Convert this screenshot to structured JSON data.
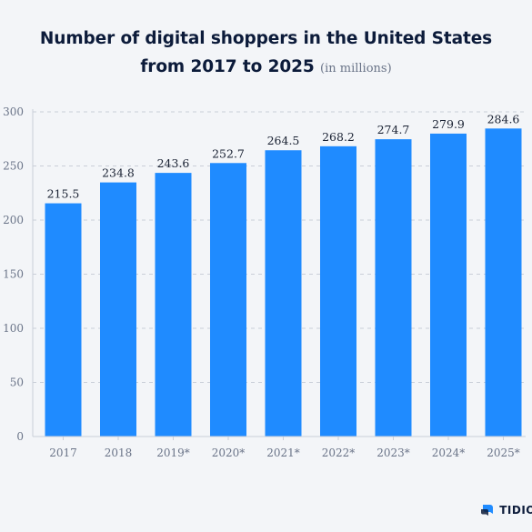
{
  "header": {
    "title_line1": "Number of digital shoppers in the United States",
    "title_line2": "from 2017 to 2025",
    "unit_note": "(in millions)"
  },
  "brand": {
    "label": "TIDIO",
    "color": "#1f8bff"
  },
  "chart_data": {
    "type": "bar",
    "title": "Number of digital shoppers in the United States from 2017 to 2025 (in millions)",
    "xlabel": "",
    "ylabel": "",
    "categories": [
      "2017",
      "2018",
      "2019*",
      "2020*",
      "2021*",
      "2022*",
      "2023*",
      "2024*",
      "2025*"
    ],
    "values": [
      215.5,
      234.8,
      243.6,
      252.7,
      264.5,
      268.2,
      274.7,
      279.9,
      284.6
    ],
    "value_labels": [
      "215.5",
      "234.8",
      "243.6",
      "252.7",
      "264.5",
      "268.2",
      "274.7",
      "279.9",
      "284.6"
    ],
    "ylim": [
      0,
      300
    ],
    "yticks": [
      0,
      50,
      100,
      150,
      200,
      250,
      300
    ],
    "grid": true,
    "bar_color": "#1f8bff",
    "legend": "none"
  }
}
